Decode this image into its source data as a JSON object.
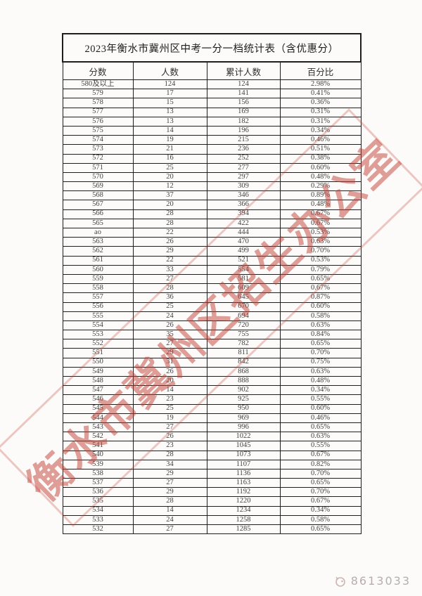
{
  "page": {
    "watermark_text": "衡水市冀州区招生办公室",
    "watermark_color": "#c24036",
    "footer_id": "8613033"
  },
  "table": {
    "title": "2023年衡水市冀州区中考一分一档统计表（含优惠分）",
    "headers": [
      "分数",
      "人数",
      "累计人数",
      "百分比"
    ],
    "rows": [
      [
        "580及以上",
        "124",
        "124",
        "2.98%"
      ],
      [
        "579",
        "17",
        "141",
        "0.41%"
      ],
      [
        "578",
        "15",
        "156",
        "0.36%"
      ],
      [
        "577",
        "13",
        "169",
        "0.31%"
      ],
      [
        "576",
        "13",
        "182",
        "0.31%"
      ],
      [
        "575",
        "14",
        "196",
        "0.34%"
      ],
      [
        "574",
        "19",
        "215",
        "0.46%"
      ],
      [
        "573",
        "21",
        "236",
        "0.51%"
      ],
      [
        "572",
        "16",
        "252",
        "0.38%"
      ],
      [
        "571",
        "25",
        "277",
        "0.60%"
      ],
      [
        "570",
        "20",
        "297",
        "0.48%"
      ],
      [
        "569",
        "12",
        "309",
        "0.29%"
      ],
      [
        "568",
        "37",
        "346",
        "0.89%"
      ],
      [
        "567",
        "20",
        "366",
        "0.48%"
      ],
      [
        "566",
        "28",
        "394",
        "0.67%"
      ],
      [
        "565",
        "28",
        "422",
        "0.67%"
      ],
      [
        "ao",
        "22",
        "444",
        "0.53%"
      ],
      [
        "563",
        "26",
        "470",
        "0.63%"
      ],
      [
        "562",
        "29",
        "499",
        "0.70%"
      ],
      [
        "561",
        "22",
        "521",
        "0.53%"
      ],
      [
        "560",
        "33",
        "554",
        "0.79%"
      ],
      [
        "559",
        "27",
        "581",
        "0.65%"
      ],
      [
        "558",
        "28",
        "609",
        "0.67%"
      ],
      [
        "557",
        "36",
        "645",
        "0.87%"
      ],
      [
        "556",
        "25",
        "670",
        "0.60%"
      ],
      [
        "555",
        "24",
        "694",
        "0.58%"
      ],
      [
        "554",
        "26",
        "720",
        "0.63%"
      ],
      [
        "553",
        "35",
        "755",
        "0.84%"
      ],
      [
        "552",
        "27",
        "782",
        "0.65%"
      ],
      [
        "551",
        "29",
        "811",
        "0.70%"
      ],
      [
        "550",
        "31",
        "842",
        "0.75%"
      ],
      [
        "549",
        "26",
        "868",
        "0.63%"
      ],
      [
        "548",
        "20",
        "888",
        "0.48%"
      ],
      [
        "547",
        "14",
        "902",
        "0.34%"
      ],
      [
        "546",
        "23",
        "925",
        "0.55%"
      ],
      [
        "545",
        "25",
        "950",
        "0.60%"
      ],
      [
        "544",
        "19",
        "969",
        "0.46%"
      ],
      [
        "543",
        "27",
        "996",
        "0.65%"
      ],
      [
        "542",
        "26",
        "1022",
        "0.63%"
      ],
      [
        "541",
        "23",
        "1045",
        "0.55%"
      ],
      [
        "540",
        "28",
        "1073",
        "0.67%"
      ],
      [
        "539",
        "34",
        "1107",
        "0.82%"
      ],
      [
        "538",
        "29",
        "1136",
        "0.70%"
      ],
      [
        "537",
        "27",
        "1163",
        "0.65%"
      ],
      [
        "536",
        "29",
        "1192",
        "0.70%"
      ],
      [
        "535",
        "28",
        "1220",
        "0.67%"
      ],
      [
        "534",
        "14",
        "1234",
        "0.34%"
      ],
      [
        "533",
        "24",
        "1258",
        "0.58%"
      ],
      [
        "532",
        "27",
        "1285",
        "0.65%"
      ]
    ]
  }
}
